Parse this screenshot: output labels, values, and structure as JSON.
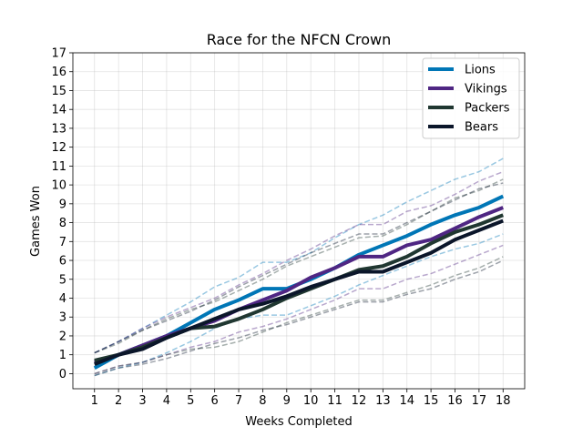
{
  "chart_data": {
    "type": "line",
    "title": "Race for the NFCN Crown",
    "xlabel": "Weeks Completed",
    "ylabel": "Games Won",
    "x": [
      1,
      2,
      3,
      4,
      5,
      6,
      7,
      8,
      9,
      10,
      11,
      12,
      13,
      14,
      15,
      16,
      17,
      18
    ],
    "xlim": [
      0.1,
      18.9
    ],
    "ylim": [
      -0.8,
      17
    ],
    "yticks": [
      0,
      1,
      2,
      3,
      4,
      5,
      6,
      7,
      8,
      9,
      10,
      11,
      12,
      13,
      14,
      15,
      16,
      17
    ],
    "grid": true,
    "legend_position": "top-right",
    "series": [
      {
        "name": "Lions",
        "color": "#0076B6",
        "values": [
          0.3,
          1.0,
          1.5,
          2.0,
          2.7,
          3.4,
          3.9,
          4.5,
          4.5,
          5.0,
          5.6,
          6.3,
          6.8,
          7.3,
          7.9,
          8.4,
          8.8,
          9.4
        ],
        "band_upper": [
          1.1,
          1.7,
          2.4,
          3.1,
          3.8,
          4.6,
          5.1,
          5.9,
          5.9,
          6.4,
          7.2,
          7.9,
          8.4,
          9.1,
          9.7,
          10.3,
          10.7,
          11.4
        ],
        "band_lower": [
          -0.1,
          0.3,
          0.6,
          1.1,
          1.7,
          2.4,
          2.9,
          3.1,
          3.1,
          3.6,
          4.1,
          4.7,
          5.2,
          5.7,
          6.2,
          6.6,
          6.9,
          7.4
        ]
      },
      {
        "name": "Vikings",
        "color": "#4F2683",
        "values": [
          0.6,
          1.0,
          1.5,
          2.0,
          2.4,
          2.8,
          3.4,
          3.9,
          4.4,
          5.1,
          5.6,
          6.2,
          6.2,
          6.8,
          7.1,
          7.7,
          8.3,
          8.8
        ],
        "band_upper": [
          1.1,
          1.7,
          2.4,
          3.0,
          3.5,
          4.0,
          4.7,
          5.3,
          6.0,
          6.6,
          7.3,
          7.9,
          7.9,
          8.6,
          8.9,
          9.5,
          10.2,
          10.7
        ],
        "band_lower": [
          0.0,
          0.4,
          0.6,
          1.0,
          1.4,
          1.7,
          2.2,
          2.5,
          2.9,
          3.4,
          3.9,
          4.5,
          4.5,
          5.0,
          5.3,
          5.8,
          6.3,
          6.8
        ]
      },
      {
        "name": "Packers",
        "color": "#203731",
        "values": [
          0.7,
          1.0,
          1.4,
          1.9,
          2.4,
          2.5,
          2.9,
          3.4,
          4.0,
          4.5,
          5.0,
          5.5,
          5.7,
          6.2,
          6.9,
          7.5,
          7.9,
          8.4
        ],
        "band_upper": [
          1.1,
          1.6,
          2.3,
          2.9,
          3.4,
          3.8,
          4.4,
          5.0,
          5.7,
          6.2,
          6.7,
          7.2,
          7.3,
          7.9,
          8.6,
          9.3,
          9.7,
          10.3
        ],
        "band_lower": [
          0.0,
          0.4,
          0.6,
          1.0,
          1.3,
          1.4,
          1.7,
          2.2,
          2.7,
          3.1,
          3.5,
          3.9,
          3.9,
          4.3,
          4.7,
          5.2,
          5.6,
          6.2
        ]
      },
      {
        "name": "Bears",
        "color": "#0B162A",
        "values": [
          0.5,
          1.0,
          1.3,
          1.9,
          2.4,
          2.9,
          3.4,
          3.7,
          4.1,
          4.6,
          5.0,
          5.4,
          5.4,
          5.9,
          6.4,
          7.1,
          7.6,
          8.1
        ],
        "band_upper": [
          1.1,
          1.7,
          2.3,
          2.8,
          3.3,
          3.9,
          4.6,
          5.2,
          5.8,
          6.4,
          6.9,
          7.4,
          7.4,
          8.0,
          8.6,
          9.2,
          9.8,
          10.1
        ],
        "band_lower": [
          -0.1,
          0.3,
          0.5,
          0.8,
          1.2,
          1.6,
          1.9,
          2.3,
          2.6,
          3.0,
          3.4,
          3.8,
          3.8,
          4.2,
          4.5,
          5.0,
          5.4,
          6.0
        ]
      }
    ]
  }
}
